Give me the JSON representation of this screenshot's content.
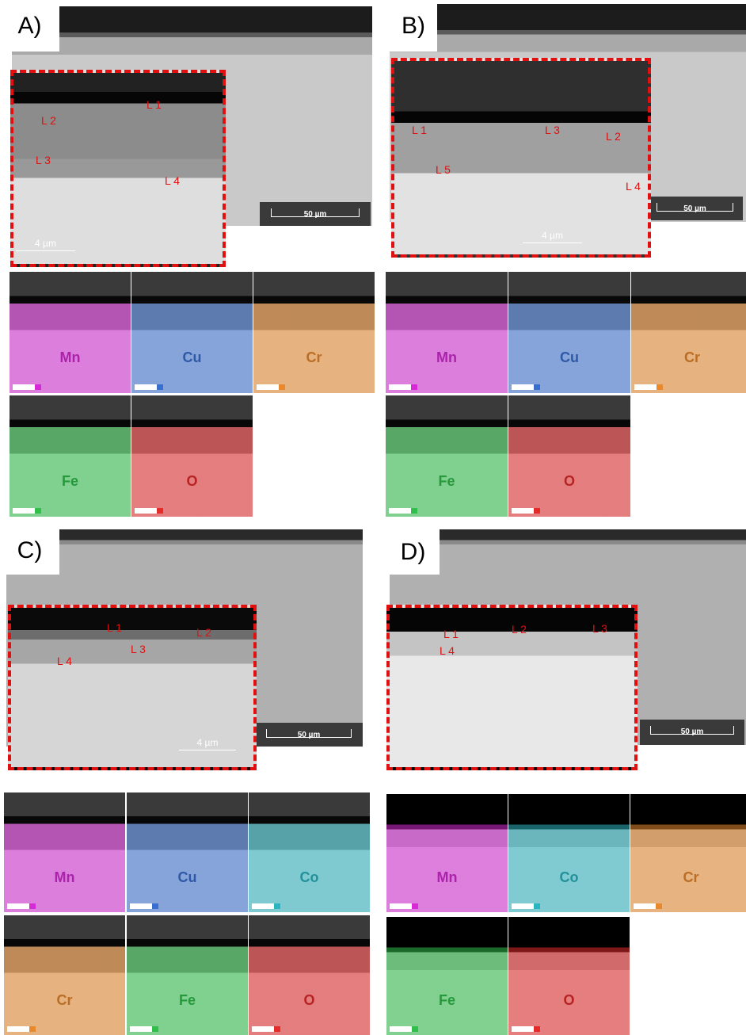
{
  "panels": [
    {
      "label": "A)",
      "scale_bar": "50 µm",
      "inset_scale_bar": "4 µm",
      "points": [
        "L 1",
        "L 2",
        "L 3",
        "L 4"
      ],
      "maps": [
        {
          "element": "Mn",
          "color": "#d62ad6"
        },
        {
          "element": "Cu",
          "color": "#3a6fd0"
        },
        {
          "element": "Cr",
          "color": "#e8892e"
        },
        {
          "element": "Fe",
          "color": "#2fbf4a"
        },
        {
          "element": "O",
          "color": "#e52a2a"
        }
      ]
    },
    {
      "label": "B)",
      "scale_bar": "50 µm",
      "inset_scale_bar": "4 µm",
      "points": [
        "L 1",
        "L 3",
        "L 2",
        "L 5",
        "L 4"
      ],
      "maps": [
        {
          "element": "Mn",
          "color": "#d62ad6"
        },
        {
          "element": "Cu",
          "color": "#3a6fd0"
        },
        {
          "element": "Cr",
          "color": "#e8892e"
        },
        {
          "element": "Fe",
          "color": "#2fbf4a"
        },
        {
          "element": "O",
          "color": "#e52a2a"
        }
      ]
    },
    {
      "label": "C)",
      "scale_bar": "50 µm",
      "inset_scale_bar": "4 µm",
      "points": [
        "L 1",
        "L 2",
        "L 3",
        "L 4"
      ],
      "maps": [
        {
          "element": "Mn",
          "color": "#d62ad6"
        },
        {
          "element": "Cu",
          "color": "#3a6fd0"
        },
        {
          "element": "Co",
          "color": "#2bb5c0"
        },
        {
          "element": "Cr",
          "color": "#e8892e"
        },
        {
          "element": "Fe",
          "color": "#2fbf4a"
        },
        {
          "element": "O",
          "color": "#e52a2a"
        }
      ]
    },
    {
      "label": "D)",
      "scale_bar": "50 µm",
      "points": [
        "L 1",
        "L 2",
        "L 3",
        "L 4"
      ],
      "maps": [
        {
          "element": "Mn",
          "color": "#d62ad6"
        },
        {
          "element": "Co",
          "color": "#2bb5c0"
        },
        {
          "element": "Cr",
          "color": "#e8892e"
        },
        {
          "element": "Fe",
          "color": "#2fbf4a"
        },
        {
          "element": "O",
          "color": "#e52a2a"
        }
      ]
    }
  ]
}
